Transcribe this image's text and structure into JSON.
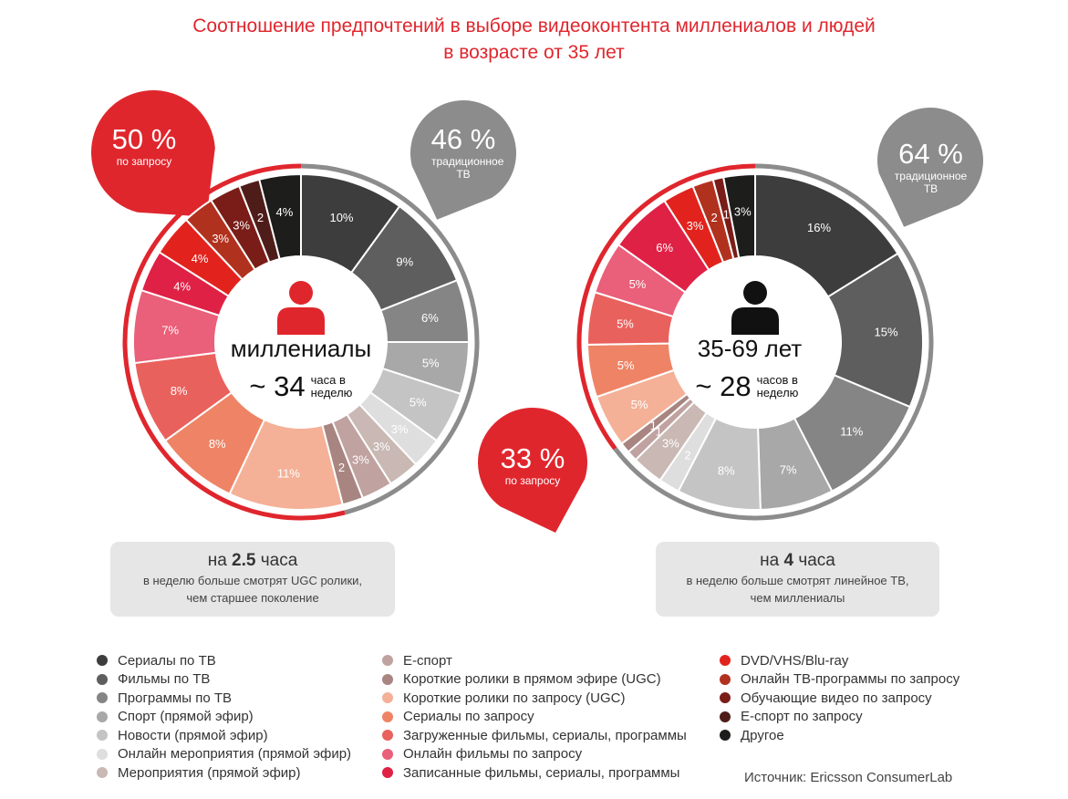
{
  "title": {
    "line1": "Соотношение предпочтений в выборе видеоконтента миллениалов и людей",
    "line2": "в возрасте от 35 лет"
  },
  "colors": {
    "accent": "#e0262d",
    "gray_pin": "#8c8c8c",
    "note_bg": "#e6e6e6"
  },
  "chart_data": [
    {
      "type": "pie",
      "title": "миллениалы",
      "center_title": "миллениалы",
      "hours_value": "~ 34",
      "hours_unit": "часа в неделю",
      "slice_labels": [
        "10%",
        "9%",
        "6%",
        "5%",
        "5%",
        "3%",
        "3%",
        "3%",
        "2",
        "11%",
        "8%",
        "8%",
        "7%",
        "4%",
        "4%",
        "3%",
        "3%",
        "2",
        "4%"
      ],
      "values": [
        10,
        9,
        6,
        5,
        5,
        3,
        3,
        3,
        2,
        11,
        8,
        8,
        7,
        4,
        4,
        3,
        3,
        2,
        4
      ],
      "categories": [
        "Сериалы по ТВ",
        "Фильмы по ТВ",
        "Программы по ТВ",
        "Спорт (прямой эфир)",
        "Новости (прямой эфир)",
        "Онлайн мероприятия (прямой эфир)",
        "Мероприятия (прямой эфир)",
        "Е-спорт",
        "Короткие ролики в прямом эфире (UGC)",
        "Короткие ролики по запросу (UGC)",
        "Сериалы по запросу",
        "Загруженные фильмы, сериалы, программы",
        "Онлайн фильмы по запросу",
        "Записанные фильмы, сериалы, программы",
        "DVD/VHS/Blu-ray",
        "Онлайн ТВ-программы по запросу",
        "Обучающие видео по запросу",
        "Е-спорт по запросу",
        "Другое"
      ],
      "on_demand": {
        "pct": "50 %",
        "label": "по запросу"
      },
      "traditional": {
        "pct": "46 %",
        "label": "традиционное ТВ"
      },
      "note": {
        "prefix": "на ",
        "bold": "2.5",
        "suffix": " часа",
        "line2": "в неделю больше смотрят UGC ролики,",
        "line3": "чем старшее поколение"
      }
    },
    {
      "type": "pie",
      "title": "35-69 лет",
      "center_title": "35-69 лет",
      "hours_value": "~ 28",
      "hours_unit": "часов в неделю",
      "slice_labels": [
        "16%",
        "15%",
        "11%",
        "7%",
        "8%",
        "2",
        "3%",
        "1",
        "1",
        "5%",
        "5%",
        "5%",
        "5%",
        "6%",
        "3%",
        "2",
        "1",
        "3%"
      ],
      "values": [
        16,
        15,
        11,
        7,
        8,
        2,
        3,
        1,
        1,
        5,
        5,
        5,
        5,
        6,
        3,
        2,
        1,
        3
      ],
      "categories": [
        "Сериалы по ТВ",
        "Фильмы по ТВ",
        "Программы по ТВ",
        "Спорт (прямой эфир)",
        "Новости (прямой эфир)",
        "Онлайн мероприятия (прямой эфир)",
        "Мероприятия (прямой эфир)",
        "Е-спорт",
        "Короткие ролики в прямом эфире (UGC)",
        "Короткие ролики по запросу (UGC)",
        "Сериалы по запросу",
        "Загруженные фильмы, сериалы, программы",
        "Онлайн фильмы по запросу",
        "Записанные фильмы, сериалы, программы",
        "DVD/VHS/Blu-ray",
        "Онлайн ТВ-программы по запросу",
        "Обучающие видео по запросу",
        "Другое"
      ],
      "on_demand": {
        "pct": "33 %",
        "label": "по запросу"
      },
      "traditional": {
        "pct": "64 %",
        "label": "традиционное ТВ"
      },
      "note": {
        "prefix": "на ",
        "bold": "4",
        "suffix": " часа",
        "line2": "в неделю больше смотрят линейное ТВ,",
        "line3": "чем миллениалы"
      }
    }
  ],
  "legend": {
    "columns": [
      [
        {
          "label": "Сериалы по ТВ",
          "color": "#3d3d3d"
        },
        {
          "label": "Фильмы по ТВ",
          "color": "#5e5e5e"
        },
        {
          "label": "Программы по ТВ",
          "color": "#858585"
        },
        {
          "label": "Спорт (прямой эфир)",
          "color": "#a8a8a8"
        },
        {
          "label": "Новости (прямой эфир)",
          "color": "#c4c4c4"
        },
        {
          "label": "Онлайн мероприятия (прямой эфир)",
          "color": "#dedede"
        },
        {
          "label": "Мероприятия (прямой эфир)",
          "color": "#c9b8b3"
        }
      ],
      [
        {
          "label": "Е-спорт",
          "color": "#c0a2a0"
        },
        {
          "label": "Короткие ролики в прямом эфире (UGC)",
          "color": "#a88581"
        },
        {
          "label": "Короткие ролики по запросу (UGC)",
          "color": "#f4b197"
        },
        {
          "label": "Сериалы по запросу",
          "color": "#ee8465"
        },
        {
          "label": "Загруженные фильмы, сериалы, программы",
          "color": "#e9615d"
        },
        {
          "label": "Онлайн фильмы по запросу",
          "color": "#ea5f79"
        },
        {
          "label": "Записанные фильмы, сериалы, программы",
          "color": "#df2146"
        }
      ],
      [
        {
          "label": "DVD/VHS/Blu-ray",
          "color": "#e2231d"
        },
        {
          "label": "Онлайн ТВ-программы по запросу",
          "color": "#b1311f"
        },
        {
          "label": "Обучающие видео по запросу",
          "color": "#7a1d18"
        },
        {
          "label": "Е-спорт по запросу",
          "color": "#4f1d19"
        },
        {
          "label": "Другое",
          "color": "#1d1d1b"
        }
      ]
    ]
  },
  "source": "Источник: Ericsson ConsumerLab"
}
